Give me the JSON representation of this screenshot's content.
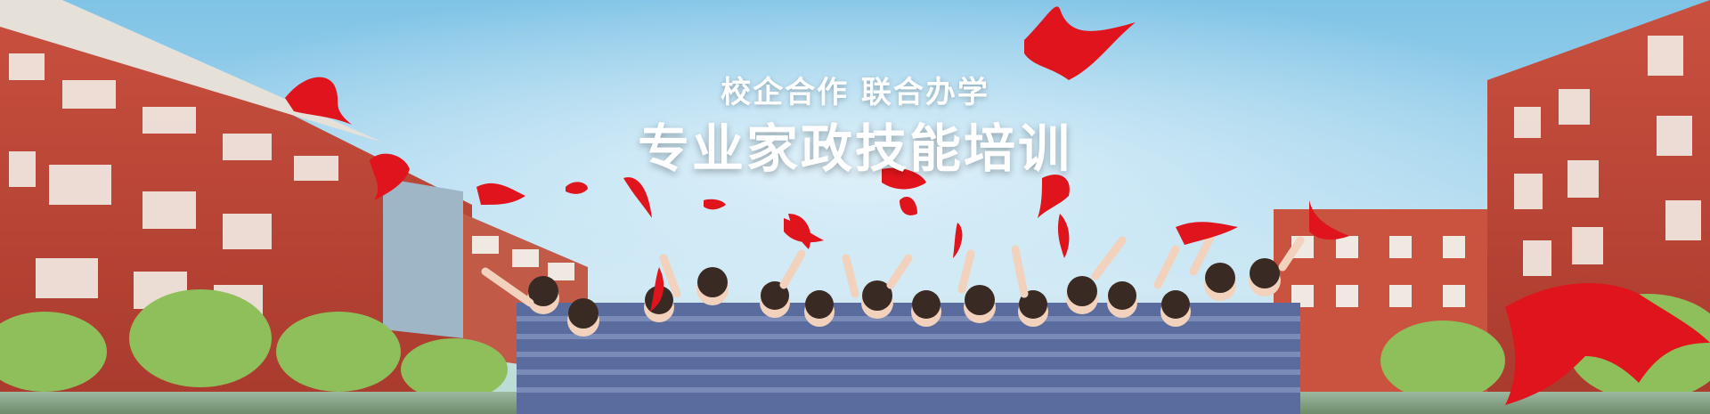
{
  "banner": {
    "slogan": "校企合作  联合办学",
    "title": "专业家政技能培训"
  },
  "colors": {
    "sky": "#8ccbeb",
    "brick": "#c2493a",
    "scarf": "#e0141c",
    "shirt": "#5a6c9e"
  }
}
